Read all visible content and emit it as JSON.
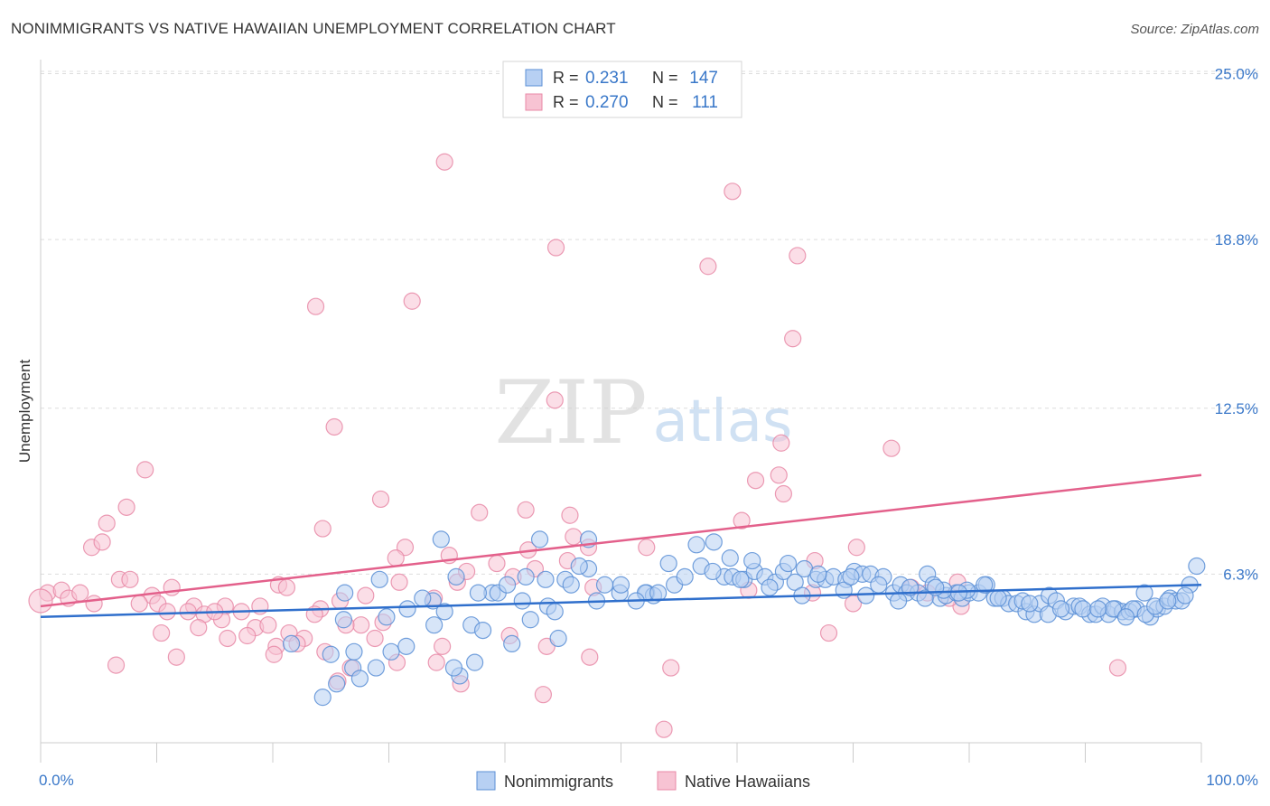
{
  "header": {
    "title": "NONIMMIGRANTS VS NATIVE HAWAIIAN UNEMPLOYMENT CORRELATION CHART",
    "source": "Source: ZipAtlas.com"
  },
  "watermark": {
    "zip": "ZIP",
    "atlas": "atlas"
  },
  "colors": {
    "blue": "#5b8fd6",
    "blue_fill": "#b7d0f3",
    "blue_line": "#2f6fcc",
    "pink": "#e88aa7",
    "pink_fill": "#f7c3d3",
    "pink_line": "#e3608b",
    "tick_label": "#3a78c9",
    "grid": "#dddddd"
  },
  "chart_data": {
    "type": "scatter",
    "title": "NONIMMIGRANTS VS NATIVE HAWAIIAN UNEMPLOYMENT CORRELATION CHART",
    "xlabel": "",
    "ylabel": "Unemployment",
    "xlim": [
      0,
      100
    ],
    "ylim": [
      0,
      26
    ],
    "x_tick_labels": [
      "0.0%",
      "100.0%"
    ],
    "y_ticks": [
      6.3,
      12.5,
      18.8,
      25.0
    ],
    "y_tick_labels": [
      "6.3%",
      "12.5%",
      "18.8%",
      "25.0%"
    ],
    "grid": "horizontal dashed",
    "legend_position": "top-center",
    "stats": [
      {
        "r_label": "R =",
        "r_value": "0.231",
        "n_label": "N =",
        "n_value": "147"
      },
      {
        "r_label": "R =",
        "r_value": "0.270",
        "n_label": "N =",
        "n_value": "111"
      }
    ],
    "series": [
      {
        "name": "Nonimmigrants",
        "color": "#5b8fd6",
        "trend": [
          [
            0,
            4.7
          ],
          [
            100,
            5.9
          ]
        ],
        "points": [
          [
            24.3,
            1.7
          ],
          [
            25.5,
            2.2
          ],
          [
            26.9,
            2.8
          ],
          [
            27.5,
            2.4
          ],
          [
            25.0,
            3.3
          ],
          [
            27.0,
            3.4
          ],
          [
            28.9,
            2.8
          ],
          [
            30.2,
            3.4
          ],
          [
            31.5,
            3.6
          ],
          [
            36.1,
            2.5
          ],
          [
            35.6,
            2.8
          ],
          [
            37.4,
            3.0
          ],
          [
            21.6,
            3.7
          ],
          [
            26.1,
            4.6
          ],
          [
            29.8,
            4.7
          ],
          [
            33.9,
            4.4
          ],
          [
            37.1,
            4.4
          ],
          [
            38.1,
            4.2
          ],
          [
            40.6,
            3.7
          ],
          [
            44.6,
            3.9
          ],
          [
            42.2,
            4.6
          ],
          [
            31.6,
            5.0
          ],
          [
            33.8,
            5.3
          ],
          [
            38.9,
            5.6
          ],
          [
            39.4,
            5.6
          ],
          [
            41.5,
            5.3
          ],
          [
            43.7,
            5.1
          ],
          [
            44.3,
            4.9
          ],
          [
            47.9,
            5.3
          ],
          [
            49.9,
            5.6
          ],
          [
            52.2,
            5.6
          ],
          [
            52.8,
            5.5
          ],
          [
            29.2,
            6.1
          ],
          [
            35.8,
            6.2
          ],
          [
            40.2,
            5.9
          ],
          [
            41.8,
            6.2
          ],
          [
            43.5,
            6.1
          ],
          [
            45.2,
            6.1
          ],
          [
            45.7,
            5.9
          ],
          [
            47.2,
            6.5
          ],
          [
            48.6,
            5.9
          ],
          [
            50.0,
            5.9
          ],
          [
            52.1,
            5.6
          ],
          [
            53.2,
            5.6
          ],
          [
            54.6,
            5.9
          ],
          [
            55.5,
            6.2
          ],
          [
            56.9,
            6.6
          ],
          [
            58.9,
            6.2
          ],
          [
            59.6,
            6.2
          ],
          [
            60.6,
            6.1
          ],
          [
            61.5,
            6.4
          ],
          [
            62.4,
            6.2
          ],
          [
            63.3,
            6.0
          ],
          [
            64.0,
            6.4
          ],
          [
            65.0,
            6.0
          ],
          [
            65.8,
            6.5
          ],
          [
            66.8,
            6.1
          ],
          [
            67.6,
            6.1
          ],
          [
            68.3,
            6.2
          ],
          [
            69.4,
            6.1
          ],
          [
            70.1,
            6.4
          ],
          [
            70.8,
            6.3
          ],
          [
            71.5,
            6.3
          ],
          [
            72.6,
            6.2
          ],
          [
            73.5,
            5.6
          ],
          [
            74.1,
            5.9
          ],
          [
            74.6,
            5.6
          ],
          [
            75.6,
            5.6
          ],
          [
            76.4,
            6.3
          ],
          [
            76.9,
            5.9
          ],
          [
            77.5,
            5.4
          ],
          [
            78.0,
            5.5
          ],
          [
            78.9,
            5.6
          ],
          [
            79.4,
            5.4
          ],
          [
            80.0,
            5.6
          ],
          [
            80.8,
            5.6
          ],
          [
            81.5,
            5.9
          ],
          [
            82.2,
            5.4
          ],
          [
            82.9,
            5.4
          ],
          [
            83.4,
            5.2
          ],
          [
            84.1,
            5.2
          ],
          [
            84.9,
            4.9
          ],
          [
            85.6,
            4.8
          ],
          [
            86.1,
            5.2
          ],
          [
            86.9,
            5.5
          ],
          [
            87.5,
            5.3
          ],
          [
            88.3,
            4.9
          ],
          [
            89.0,
            5.1
          ],
          [
            89.5,
            5.1
          ],
          [
            90.4,
            4.8
          ],
          [
            90.9,
            4.8
          ],
          [
            91.5,
            5.1
          ],
          [
            92.0,
            4.8
          ],
          [
            92.6,
            5.0
          ],
          [
            93.2,
            4.9
          ],
          [
            93.8,
            4.9
          ],
          [
            94.4,
            5.0
          ],
          [
            95.1,
            5.6
          ],
          [
            95.6,
            4.7
          ],
          [
            96.2,
            5.0
          ],
          [
            96.8,
            5.1
          ],
          [
            97.3,
            5.4
          ],
          [
            97.8,
            5.3
          ],
          [
            98.3,
            5.3
          ],
          [
            99.0,
            5.9
          ],
          [
            99.6,
            6.6
          ],
          [
            98.6,
            5.5
          ],
          [
            26.2,
            5.6
          ],
          [
            32.9,
            5.4
          ],
          [
            34.8,
            4.9
          ],
          [
            51.3,
            5.3
          ],
          [
            54.1,
            6.7
          ],
          [
            57.9,
            6.4
          ],
          [
            46.4,
            6.6
          ],
          [
            59.4,
            6.9
          ],
          [
            61.3,
            6.8
          ],
          [
            64.4,
            6.7
          ],
          [
            65.6,
            5.5
          ],
          [
            69.2,
            5.7
          ],
          [
            71.1,
            5.5
          ],
          [
            73.9,
            5.3
          ],
          [
            76.2,
            5.4
          ],
          [
            77.8,
            5.7
          ],
          [
            79.8,
            5.7
          ],
          [
            81.3,
            5.9
          ],
          [
            84.6,
            5.3
          ],
          [
            85.2,
            5.2
          ],
          [
            86.8,
            4.8
          ],
          [
            89.8,
            5.0
          ],
          [
            92.4,
            5.0
          ],
          [
            94.1,
            5.0
          ],
          [
            95.2,
            4.8
          ],
          [
            96.0,
            5.1
          ],
          [
            97.1,
            5.3
          ],
          [
            60.3,
            6.1
          ],
          [
            62.8,
            5.8
          ],
          [
            67.0,
            6.3
          ],
          [
            69.8,
            6.2
          ],
          [
            72.2,
            5.9
          ],
          [
            74.9,
            5.8
          ],
          [
            77.1,
            5.8
          ],
          [
            79.1,
            5.6
          ],
          [
            82.5,
            5.4
          ],
          [
            87.9,
            5.0
          ],
          [
            91.1,
            5.0
          ],
          [
            93.5,
            4.7
          ],
          [
            56.5,
            7.4
          ],
          [
            58.0,
            7.5
          ],
          [
            43.0,
            7.6
          ],
          [
            47.2,
            7.6
          ],
          [
            37.7,
            5.6
          ],
          [
            34.5,
            7.6
          ]
        ]
      },
      {
        "name": "Native Hawaiians",
        "color": "#e88aa7",
        "trend": [
          [
            0,
            5.1
          ],
          [
            100,
            10.0
          ]
        ],
        "points": [
          [
            34.8,
            21.7
          ],
          [
            59.6,
            20.6
          ],
          [
            44.4,
            18.5
          ],
          [
            57.5,
            17.8
          ],
          [
            65.2,
            18.2
          ],
          [
            23.7,
            16.3
          ],
          [
            32.0,
            16.5
          ],
          [
            64.8,
            15.1
          ],
          [
            44.3,
            12.8
          ],
          [
            25.3,
            11.8
          ],
          [
            63.8,
            11.2
          ],
          [
            73.3,
            11.0
          ],
          [
            9.0,
            10.2
          ],
          [
            61.6,
            9.8
          ],
          [
            63.6,
            10.0
          ],
          [
            64.0,
            9.3
          ],
          [
            7.4,
            8.8
          ],
          [
            29.3,
            9.1
          ],
          [
            37.8,
            8.6
          ],
          [
            41.8,
            8.7
          ],
          [
            45.6,
            8.5
          ],
          [
            5.7,
            8.2
          ],
          [
            60.4,
            8.3
          ],
          [
            24.3,
            8.0
          ],
          [
            45.9,
            7.7
          ],
          [
            4.4,
            7.3
          ],
          [
            5.3,
            7.5
          ],
          [
            31.4,
            7.3
          ],
          [
            35.2,
            7.0
          ],
          [
            42.0,
            7.2
          ],
          [
            47.2,
            7.3
          ],
          [
            52.2,
            7.3
          ],
          [
            30.6,
            6.9
          ],
          [
            39.3,
            6.7
          ],
          [
            45.4,
            6.8
          ],
          [
            66.7,
            6.8
          ],
          [
            0.6,
            5.6
          ],
          [
            1.8,
            5.7
          ],
          [
            2.4,
            5.4
          ],
          [
            3.4,
            5.6
          ],
          [
            4.6,
            5.2
          ],
          [
            6.8,
            6.1
          ],
          [
            7.7,
            6.1
          ],
          [
            9.6,
            5.5
          ],
          [
            11.3,
            5.8
          ],
          [
            13.2,
            5.1
          ],
          [
            15.9,
            5.1
          ],
          [
            20.5,
            5.9
          ],
          [
            21.2,
            5.8
          ],
          [
            24.1,
            5.0
          ],
          [
            25.8,
            5.3
          ],
          [
            28.0,
            5.5
          ],
          [
            30.9,
            6.0
          ],
          [
            33.9,
            5.4
          ],
          [
            35.9,
            6.0
          ],
          [
            36.7,
            6.4
          ],
          [
            40.7,
            6.2
          ],
          [
            42.6,
            6.5
          ],
          [
            47.6,
            5.8
          ],
          [
            61.0,
            5.7
          ],
          [
            66.5,
            5.6
          ],
          [
            70.0,
            5.2
          ],
          [
            75.0,
            5.8
          ],
          [
            79.0,
            6.0
          ],
          [
            79.3,
            5.1
          ],
          [
            8.5,
            5.2
          ],
          [
            10.1,
            5.2
          ],
          [
            10.9,
            4.9
          ],
          [
            12.7,
            4.9
          ],
          [
            14.1,
            4.8
          ],
          [
            15.6,
            4.6
          ],
          [
            17.3,
            4.9
          ],
          [
            18.5,
            4.3
          ],
          [
            19.6,
            4.4
          ],
          [
            21.4,
            4.1
          ],
          [
            22.7,
            3.9
          ],
          [
            22.1,
            3.7
          ],
          [
            24.5,
            3.4
          ],
          [
            27.6,
            4.4
          ],
          [
            28.8,
            3.9
          ],
          [
            29.5,
            4.5
          ],
          [
            34.6,
            3.6
          ],
          [
            40.4,
            4.0
          ],
          [
            43.6,
            3.6
          ],
          [
            10.4,
            4.1
          ],
          [
            13.6,
            4.3
          ],
          [
            16.1,
            3.9
          ],
          [
            17.8,
            4.0
          ],
          [
            20.3,
            3.6
          ],
          [
            20.1,
            3.3
          ],
          [
            25.6,
            2.3
          ],
          [
            26.7,
            2.8
          ],
          [
            30.7,
            3.0
          ],
          [
            34.1,
            3.0
          ],
          [
            47.3,
            3.2
          ],
          [
            11.7,
            3.2
          ],
          [
            6.5,
            2.9
          ],
          [
            36.2,
            2.2
          ],
          [
            43.3,
            1.8
          ],
          [
            54.3,
            2.8
          ],
          [
            53.7,
            0.5
          ],
          [
            67.9,
            4.1
          ],
          [
            70.3,
            7.3
          ],
          [
            76.4,
            5.6
          ],
          [
            78.3,
            5.4
          ],
          [
            92.8,
            2.8
          ],
          [
            15.0,
            4.9
          ],
          [
            18.9,
            5.1
          ],
          [
            23.6,
            4.8
          ],
          [
            26.3,
            4.4
          ],
          [
            0.0,
            5.3
          ]
        ]
      }
    ]
  },
  "legend": {
    "items": [
      {
        "label": "Nonimmigrants",
        "color": "#5b8fd6"
      },
      {
        "label": "Native Hawaiians",
        "color": "#e88aa7"
      }
    ]
  }
}
